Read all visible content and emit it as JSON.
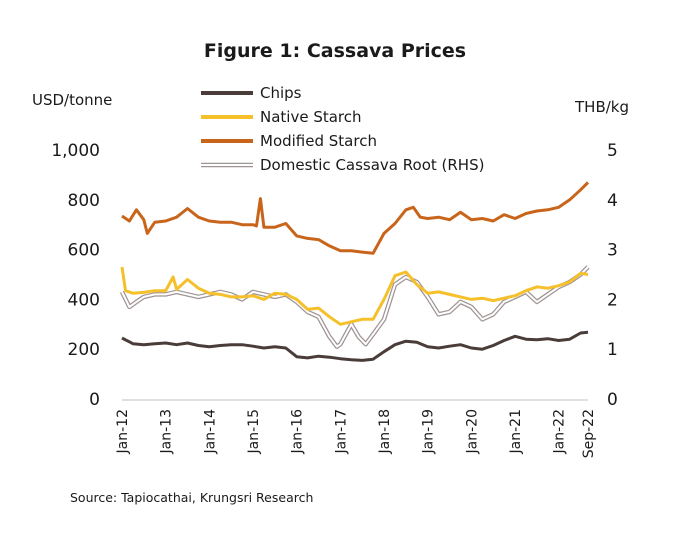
{
  "chart_data": {
    "type": "line",
    "title": "Figure 1: Cassava Prices",
    "ylabel_left": "USD/tonne",
    "ylabel_right": "THB/kg",
    "ylim_left": [
      0,
      1000
    ],
    "ylim_right": [
      0,
      5
    ],
    "yticks_left": [
      "0",
      "200",
      "400",
      "600",
      "800",
      "1,000"
    ],
    "yticks_right": [
      "0",
      "1",
      "2",
      "3",
      "4",
      "5"
    ],
    "x_labels": [
      "Jan-12",
      "Jan-13",
      "Jan-14",
      "Jan-15",
      "Jan-16",
      "Jan-17",
      "Jan-18",
      "Jan-19",
      "Jan-20",
      "Jan-21",
      "Jan-22",
      "Sep-22"
    ],
    "grid": false,
    "legend_position": "top-center",
    "series": [
      {
        "name": "Chips",
        "axis": "left",
        "color": "#4a3c38",
        "x": [
          2012.0,
          2012.25,
          2012.5,
          2012.75,
          2013.0,
          2013.25,
          2013.5,
          2013.75,
          2014.0,
          2014.25,
          2014.5,
          2014.75,
          2015.0,
          2015.25,
          2015.5,
          2015.75,
          2016.0,
          2016.25,
          2016.5,
          2016.75,
          2017.0,
          2017.25,
          2017.5,
          2017.75,
          2018.0,
          2018.25,
          2018.5,
          2018.75,
          2019.0,
          2019.25,
          2019.5,
          2019.75,
          2020.0,
          2020.25,
          2020.5,
          2020.75,
          2021.0,
          2021.25,
          2021.5,
          2021.75,
          2022.0,
          2022.25,
          2022.5,
          2022.67
        ],
        "values": [
          245,
          222,
          218,
          222,
          225,
          218,
          225,
          215,
          210,
          215,
          218,
          218,
          212,
          205,
          210,
          205,
          170,
          165,
          172,
          168,
          162,
          158,
          155,
          160,
          190,
          218,
          232,
          228,
          210,
          205,
          212,
          218,
          205,
          200,
          215,
          235,
          252,
          240,
          238,
          242,
          235,
          240,
          265,
          268
        ]
      },
      {
        "name": "Native Starch",
        "axis": "left",
        "color": "#f5c02a",
        "x": [
          2012.0,
          2012.08,
          2012.25,
          2012.5,
          2012.75,
          2013.0,
          2013.17,
          2013.25,
          2013.5,
          2013.75,
          2014.0,
          2014.25,
          2014.5,
          2014.75,
          2015.0,
          2015.25,
          2015.5,
          2015.75,
          2016.0,
          2016.25,
          2016.5,
          2016.75,
          2017.0,
          2017.25,
          2017.5,
          2017.75,
          2018.0,
          2018.25,
          2018.5,
          2018.75,
          2019.0,
          2019.25,
          2019.5,
          2019.75,
          2020.0,
          2020.25,
          2020.5,
          2020.75,
          2021.0,
          2021.25,
          2021.5,
          2021.75,
          2022.0,
          2022.25,
          2022.5,
          2022.67
        ],
        "values": [
          530,
          435,
          425,
          428,
          435,
          435,
          490,
          440,
          480,
          445,
          425,
          420,
          410,
          410,
          415,
          400,
          425,
          420,
          400,
          360,
          365,
          330,
          300,
          310,
          320,
          320,
          400,
          495,
          510,
          460,
          425,
          430,
          420,
          410,
          400,
          405,
          395,
          405,
          415,
          435,
          450,
          445,
          455,
          470,
          505,
          500
        ]
      },
      {
        "name": "Modified Starch",
        "axis": "left",
        "color": "#c8651b",
        "x": [
          2012.0,
          2012.17,
          2012.33,
          2012.5,
          2012.58,
          2012.75,
          2013.0,
          2013.25,
          2013.5,
          2013.75,
          2014.0,
          2014.25,
          2014.5,
          2014.75,
          2015.0,
          2015.08,
          2015.17,
          2015.25,
          2015.5,
          2015.75,
          2016.0,
          2016.25,
          2016.5,
          2016.75,
          2017.0,
          2017.25,
          2017.5,
          2017.75,
          2018.0,
          2018.25,
          2018.5,
          2018.67,
          2018.83,
          2019.0,
          2019.25,
          2019.5,
          2019.75,
          2020.0,
          2020.25,
          2020.5,
          2020.75,
          2021.0,
          2021.25,
          2021.5,
          2021.75,
          2022.0,
          2022.25,
          2022.5,
          2022.67
        ],
        "values": [
          735,
          715,
          760,
          720,
          665,
          710,
          715,
          730,
          765,
          730,
          715,
          710,
          710,
          700,
          700,
          695,
          805,
          690,
          690,
          705,
          655,
          645,
          640,
          615,
          595,
          595,
          590,
          585,
          665,
          705,
          760,
          770,
          730,
          725,
          730,
          720,
          750,
          720,
          725,
          715,
          740,
          725,
          745,
          755,
          760,
          770,
          800,
          840,
          870
        ]
      },
      {
        "name": "Domestic Cassava Root (RHS)",
        "axis": "right",
        "color": "#a09494",
        "x": [
          2012.0,
          2012.17,
          2012.33,
          2012.5,
          2012.75,
          2013.0,
          2013.25,
          2013.5,
          2013.75,
          2014.0,
          2014.25,
          2014.5,
          2014.75,
          2015.0,
          2015.25,
          2015.5,
          2015.75,
          2016.0,
          2016.25,
          2016.5,
          2016.75,
          2016.92,
          2017.0,
          2017.25,
          2017.42,
          2017.58,
          2017.75,
          2018.0,
          2018.25,
          2018.5,
          2018.75,
          2019.0,
          2019.25,
          2019.5,
          2019.75,
          2020.0,
          2020.25,
          2020.5,
          2020.75,
          2021.0,
          2021.25,
          2021.5,
          2021.75,
          2022.0,
          2022.25,
          2022.5,
          2022.67
        ],
        "values": [
          2.15,
          1.85,
          1.95,
          2.05,
          2.1,
          2.1,
          2.15,
          2.1,
          2.05,
          2.1,
          2.15,
          2.1,
          2.0,
          2.15,
          2.1,
          2.05,
          2.1,
          1.95,
          1.75,
          1.65,
          1.25,
          1.05,
          1.1,
          1.5,
          1.25,
          1.1,
          1.3,
          1.6,
          2.3,
          2.45,
          2.35,
          2.05,
          1.7,
          1.75,
          1.95,
          1.85,
          1.6,
          1.7,
          1.95,
          2.05,
          2.15,
          1.95,
          2.1,
          2.25,
          2.35,
          2.5,
          2.65
        ]
      }
    ],
    "source": "Source: Tapiocathai, Krungsri Research"
  }
}
